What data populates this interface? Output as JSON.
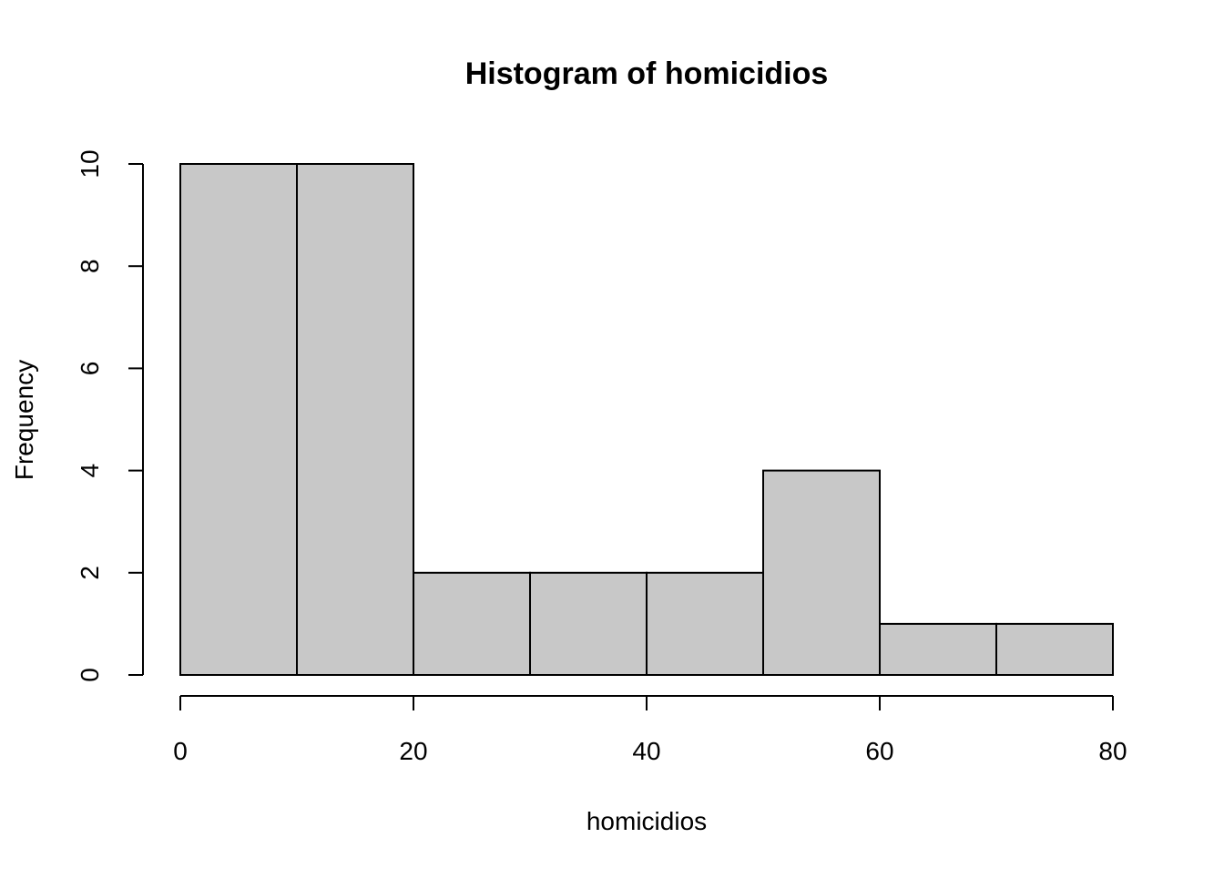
{
  "chart_data": {
    "type": "bar",
    "title": "Histogram of homicidios",
    "xlabel": "homicidios",
    "ylabel": "Frequency",
    "bins": [
      {
        "start": 0,
        "end": 10,
        "count": 10
      },
      {
        "start": 10,
        "end": 20,
        "count": 10
      },
      {
        "start": 20,
        "end": 30,
        "count": 2
      },
      {
        "start": 30,
        "end": 40,
        "count": 2
      },
      {
        "start": 40,
        "end": 50,
        "count": 2
      },
      {
        "start": 50,
        "end": 60,
        "count": 4
      },
      {
        "start": 60,
        "end": 70,
        "count": 1
      },
      {
        "start": 70,
        "end": 80,
        "count": 1
      }
    ],
    "xlim": [
      0,
      80
    ],
    "ylim": [
      0,
      10
    ],
    "x_ticks": [
      "0",
      "20",
      "40",
      "60",
      "80"
    ],
    "y_ticks": [
      "0",
      "2",
      "4",
      "6",
      "8",
      "10"
    ],
    "grid": false,
    "legend": "none",
    "bar_fill": "#c8c8c8",
    "bar_stroke": "#000000"
  }
}
